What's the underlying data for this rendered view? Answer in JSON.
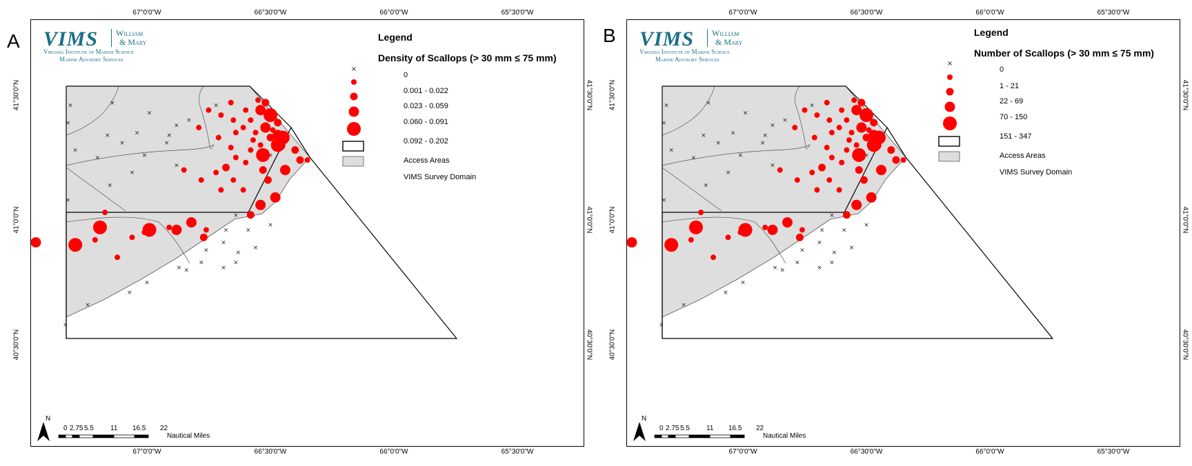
{
  "panels": [
    {
      "id": "A",
      "letter": "A",
      "legend": {
        "title": "Legend",
        "subtitle": "Density of Scallops (> 30 mm ≤ 75 mm)",
        "classes": [
          "0",
          "0.001 - 0.022",
          "0.023 - 0.059",
          "0.060 - 0.091",
          "0.092 - 0.202"
        ],
        "access_areas": "Access Areas",
        "survey_domain": "VIMS Survey Domain"
      }
    },
    {
      "id": "B",
      "letter": "B",
      "legend": {
        "title": "Legend",
        "subtitle": "Number of Scallops (> 30 mm ≤ 75 mm)",
        "classes": [
          "0",
          "1 - 21",
          "22 - 69",
          "70 - 150",
          "151 - 347"
        ],
        "access_areas": "Access Areas",
        "survey_domain": "VIMS Survey Domain"
      }
    }
  ],
  "logo": {
    "vims": "VIMS",
    "wm_line1": "William",
    "wm_line2": "& Mary",
    "institute": "Virginia Institute of Marine Science",
    "services": "Marine Advisory Services"
  },
  "axes": {
    "lon_ticks": [
      "67°0'0\"W",
      "66°30'0\"W",
      "66°0'0\"W",
      "65°30'0\"W"
    ],
    "lat_ticks": [
      "41°30'0\"N",
      "41°0'0\"N",
      "40°30'0\"N"
    ]
  },
  "scale_bar": {
    "labels": [
      "0",
      "2.75",
      "5.5",
      "11",
      "16.5",
      "22"
    ],
    "unit": "Nautical Miles"
  },
  "north_arrow": {
    "label": "N"
  },
  "colors": {
    "survey_fill": "#dedede",
    "dot": "#ff0000",
    "logo": "#1a6f86"
  },
  "stations": [
    {
      "lon": -67.31,
      "lat": 41.46,
      "cls": 0
    },
    {
      "lon": -67.14,
      "lat": 41.47,
      "cls": 0
    },
    {
      "lon": -67.32,
      "lat": 41.39,
      "cls": 0
    },
    {
      "lon": -66.99,
      "lat": 41.43,
      "cls": 0
    },
    {
      "lon": -67.04,
      "lat": 41.35,
      "cls": 0
    },
    {
      "lon": -67.16,
      "lat": 41.34,
      "cls": 0
    },
    {
      "lon": -67.1,
      "lat": 41.31,
      "cls": 0
    },
    {
      "lon": -66.91,
      "lat": 41.34,
      "cls": 0
    },
    {
      "lon": -66.88,
      "lat": 41.38,
      "cls": 0
    },
    {
      "lon": -66.83,
      "lat": 41.4,
      "cls": 0
    },
    {
      "lon": -66.72,
      "lat": 41.46,
      "cls": 0
    },
    {
      "lon": -66.92,
      "lat": 41.31,
      "cls": 0
    },
    {
      "lon": -67.29,
      "lat": 41.28,
      "cls": 0
    },
    {
      "lon": -67.2,
      "lat": 41.25,
      "cls": 0
    },
    {
      "lon": -67.01,
      "lat": 41.26,
      "cls": 0
    },
    {
      "lon": -66.88,
      "lat": 41.22,
      "cls": 0
    },
    {
      "lon": -67.06,
      "lat": 41.19,
      "cls": 0
    },
    {
      "lon": -67.15,
      "lat": 41.14,
      "cls": 0
    },
    {
      "lon": -67.32,
      "lat": 41.08,
      "cls": 0
    },
    {
      "lon": -66.64,
      "lat": 41.02,
      "cls": 0
    },
    {
      "lon": -66.68,
      "lat": 40.96,
      "cls": 0
    },
    {
      "lon": -66.59,
      "lat": 40.96,
      "cls": 0
    },
    {
      "lon": -66.5,
      "lat": 40.98,
      "cls": 0
    },
    {
      "lon": -66.69,
      "lat": 40.91,
      "cls": 0
    },
    {
      "lon": -66.76,
      "lat": 40.88,
      "cls": 0
    },
    {
      "lon": -66.63,
      "lat": 40.87,
      "cls": 0
    },
    {
      "lon": -66.56,
      "lat": 40.89,
      "cls": 0
    },
    {
      "lon": -66.78,
      "lat": 40.83,
      "cls": 0
    },
    {
      "lon": -66.87,
      "lat": 40.81,
      "cls": 0
    },
    {
      "lon": -66.84,
      "lat": 40.8,
      "cls": 0
    },
    {
      "lon": -66.69,
      "lat": 40.81,
      "cls": 0
    },
    {
      "lon": -66.64,
      "lat": 40.83,
      "cls": 0
    },
    {
      "lon": -67.0,
      "lat": 40.75,
      "cls": 0
    },
    {
      "lon": -67.07,
      "lat": 40.71,
      "cls": 0
    },
    {
      "lon": -67.24,
      "lat": 40.66,
      "cls": 0
    },
    {
      "lon": -67.33,
      "lat": 40.58,
      "cls": 0
    },
    {
      "lon": -66.5,
      "lat": 41.26,
      "cls": 0
    },
    {
      "lon": -66.55,
      "lat": 41.48,
      "cls": 1
    },
    {
      "lon": -66.6,
      "lat": 41.44,
      "cls": 1
    },
    {
      "lon": -66.7,
      "lat": 41.42,
      "cls": 1
    },
    {
      "lon": -66.65,
      "lat": 41.4,
      "cls": 1
    },
    {
      "lon": -66.58,
      "lat": 41.4,
      "cls": 1
    },
    {
      "lon": -66.61,
      "lat": 41.37,
      "cls": 1
    },
    {
      "lon": -66.64,
      "lat": 41.35,
      "cls": 1
    },
    {
      "lon": -66.71,
      "lat": 41.33,
      "cls": 1
    },
    {
      "lon": -66.56,
      "lat": 41.35,
      "cls": 1
    },
    {
      "lon": -66.57,
      "lat": 41.32,
      "cls": 1
    },
    {
      "lon": -66.66,
      "lat": 41.29,
      "cls": 1
    },
    {
      "lon": -66.58,
      "lat": 41.28,
      "cls": 1
    },
    {
      "lon": -66.54,
      "lat": 41.3,
      "cls": 1
    },
    {
      "lon": -66.64,
      "lat": 41.25,
      "cls": 1
    },
    {
      "lon": -66.6,
      "lat": 41.23,
      "cls": 1
    },
    {
      "lon": -66.72,
      "lat": 41.19,
      "cls": 1
    },
    {
      "lon": -66.65,
      "lat": 41.16,
      "cls": 1
    },
    {
      "lon": -66.7,
      "lat": 41.12,
      "cls": 1
    },
    {
      "lon": -66.61,
      "lat": 41.12,
      "cls": 1
    },
    {
      "lon": -66.85,
      "lat": 41.2,
      "cls": 1
    },
    {
      "lon": -66.78,
      "lat": 41.16,
      "cls": 1
    },
    {
      "lon": -66.79,
      "lat": 41.37,
      "cls": 1
    },
    {
      "lon": -66.75,
      "lat": 41.44,
      "cls": 1
    },
    {
      "lon": -66.66,
      "lat": 41.47,
      "cls": 1
    },
    {
      "lon": -67.17,
      "lat": 41.03,
      "cls": 1
    },
    {
      "lon": -67.21,
      "lat": 40.92,
      "cls": 1
    },
    {
      "lon": -67.06,
      "lat": 40.93,
      "cls": 1
    },
    {
      "lon": -66.91,
      "lat": 40.97,
      "cls": 1
    },
    {
      "lon": -67.12,
      "lat": 40.85,
      "cls": 1
    },
    {
      "lon": -66.76,
      "lat": 40.96,
      "cls": 1
    },
    {
      "lon": -66.35,
      "lat": 41.24,
      "cls": 1
    },
    {
      "lon": -66.49,
      "lat": 41.36,
      "cls": 1
    },
    {
      "lon": -67.01,
      "lat": 40.95,
      "cls": 1
    },
    {
      "lon": -66.52,
      "lat": 41.47,
      "cls": 2
    },
    {
      "lon": -66.47,
      "lat": 41.39,
      "cls": 2
    },
    {
      "lon": -66.5,
      "lat": 41.33,
      "cls": 2
    },
    {
      "lon": -66.4,
      "lat": 41.28,
      "cls": 2
    },
    {
      "lon": -66.38,
      "lat": 41.24,
      "cls": 2
    },
    {
      "lon": -66.53,
      "lat": 41.2,
      "cls": 2
    },
    {
      "lon": -66.51,
      "lat": 41.16,
      "cls": 2
    },
    {
      "lon": -66.58,
      "lat": 41.02,
      "cls": 2
    },
    {
      "lon": -66.88,
      "lat": 40.96,
      "cls": 2
    },
    {
      "lon": -66.77,
      "lat": 40.93,
      "cls": 2
    },
    {
      "lon": -66.68,
      "lat": 41.21,
      "cls": 2
    },
    {
      "lon": -66.54,
      "lat": 41.44,
      "cls": 3
    },
    {
      "lon": -66.52,
      "lat": 41.37,
      "cls": 3
    },
    {
      "lon": -66.47,
      "lat": 41.34,
      "cls": 3
    },
    {
      "lon": -66.46,
      "lat": 41.3,
      "cls": 3
    },
    {
      "lon": -66.44,
      "lat": 41.2,
      "cls": 3
    },
    {
      "lon": -66.48,
      "lat": 41.09,
      "cls": 3
    },
    {
      "lon": -66.54,
      "lat": 41.06,
      "cls": 3
    },
    {
      "lon": -66.82,
      "lat": 40.99,
      "cls": 3
    },
    {
      "lon": -66.88,
      "lat": 40.96,
      "cls": 3
    },
    {
      "lon": -67.45,
      "lat": 40.91,
      "cls": 3
    },
    {
      "lon": -66.5,
      "lat": 41.42,
      "cls": 4
    },
    {
      "lon": -66.45,
      "lat": 41.33,
      "cls": 4
    },
    {
      "lon": -66.53,
      "lat": 41.26,
      "cls": 4
    },
    {
      "lon": -66.47,
      "lat": 41.3,
      "cls": 4
    },
    {
      "lon": -67.19,
      "lat": 40.97,
      "cls": 4
    },
    {
      "lon": -66.99,
      "lat": 40.96,
      "cls": 4
    },
    {
      "lon": -67.29,
      "lat": 40.9,
      "cls": 4
    }
  ]
}
